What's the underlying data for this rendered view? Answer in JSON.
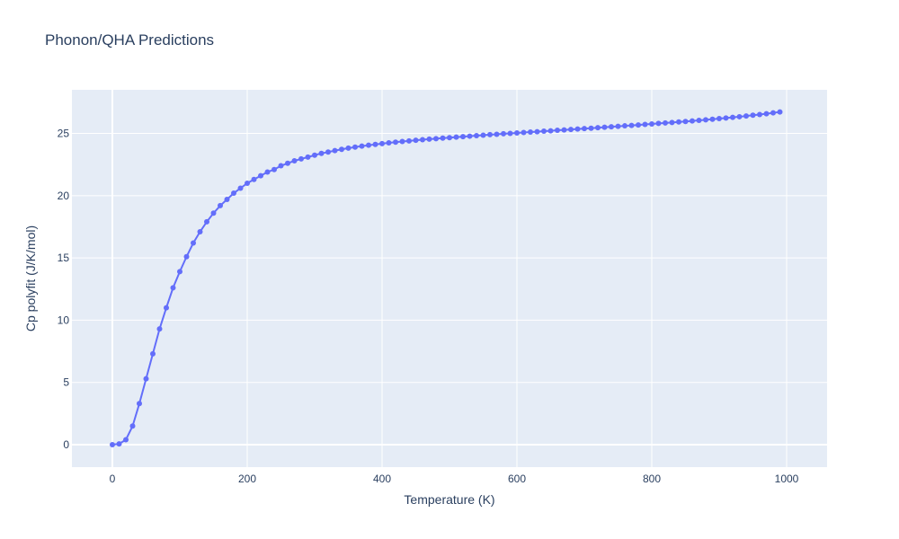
{
  "chart_data": {
    "type": "line",
    "title": "Phonon/QHA Predictions",
    "xlabel": "Temperature (K)",
    "ylabel": "Cp polyfit (J/K/mol)",
    "xlim": [
      -60,
      1060
    ],
    "ylim": [
      -1.8,
      28.5
    ],
    "xticks": [
      0,
      200,
      400,
      600,
      800,
      1000
    ],
    "yticks": [
      0,
      5,
      10,
      15,
      20,
      25
    ],
    "grid": true,
    "legend": "none",
    "colors": {
      "series": "#636efa",
      "plot_bg": "#e5ecf6",
      "grid": "#ffffff",
      "text": "#2a3f5f"
    },
    "series": [
      {
        "mode": "lines+markers",
        "x": [
          0,
          10,
          20,
          30,
          40,
          50,
          60,
          70,
          80,
          90,
          100,
          110,
          120,
          130,
          140,
          150,
          160,
          170,
          180,
          190,
          200,
          210,
          220,
          230,
          240,
          250,
          260,
          270,
          280,
          290,
          300,
          310,
          320,
          330,
          340,
          350,
          360,
          370,
          380,
          390,
          400,
          410,
          420,
          430,
          440,
          450,
          460,
          470,
          480,
          490,
          500,
          510,
          520,
          530,
          540,
          550,
          560,
          570,
          580,
          590,
          600,
          610,
          620,
          630,
          640,
          650,
          660,
          670,
          680,
          690,
          700,
          710,
          720,
          730,
          740,
          750,
          760,
          770,
          780,
          790,
          800,
          810,
          820,
          830,
          840,
          850,
          860,
          870,
          880,
          890,
          900,
          910,
          920,
          930,
          940,
          950,
          960,
          970,
          980,
          990
        ],
        "y": [
          0.0,
          0.07,
          0.4,
          1.5,
          3.3,
          5.3,
          7.3,
          9.3,
          11.0,
          12.6,
          13.9,
          15.1,
          16.2,
          17.1,
          17.9,
          18.6,
          19.2,
          19.7,
          20.2,
          20.6,
          21.0,
          21.3,
          21.6,
          21.9,
          22.1,
          22.4,
          22.6,
          22.8,
          22.95,
          23.1,
          23.25,
          23.4,
          23.5,
          23.62,
          23.72,
          23.82,
          23.9,
          23.98,
          24.05,
          24.12,
          24.18,
          24.24,
          24.3,
          24.35,
          24.4,
          24.45,
          24.5,
          24.54,
          24.58,
          24.62,
          24.66,
          24.7,
          24.74,
          24.78,
          24.82,
          24.86,
          24.9,
          24.93,
          24.97,
          25.0,
          25.04,
          25.07,
          25.11,
          25.14,
          25.18,
          25.21,
          25.25,
          25.28,
          25.32,
          25.35,
          25.39,
          25.42,
          25.46,
          25.5,
          25.53,
          25.57,
          25.61,
          25.64,
          25.68,
          25.72,
          25.76,
          25.8,
          25.84,
          25.88,
          25.92,
          25.96,
          26.0,
          26.05,
          26.09,
          26.14,
          26.19,
          26.24,
          26.29,
          26.34,
          26.4,
          26.46,
          26.52,
          26.58,
          26.65,
          26.72
        ]
      }
    ]
  }
}
